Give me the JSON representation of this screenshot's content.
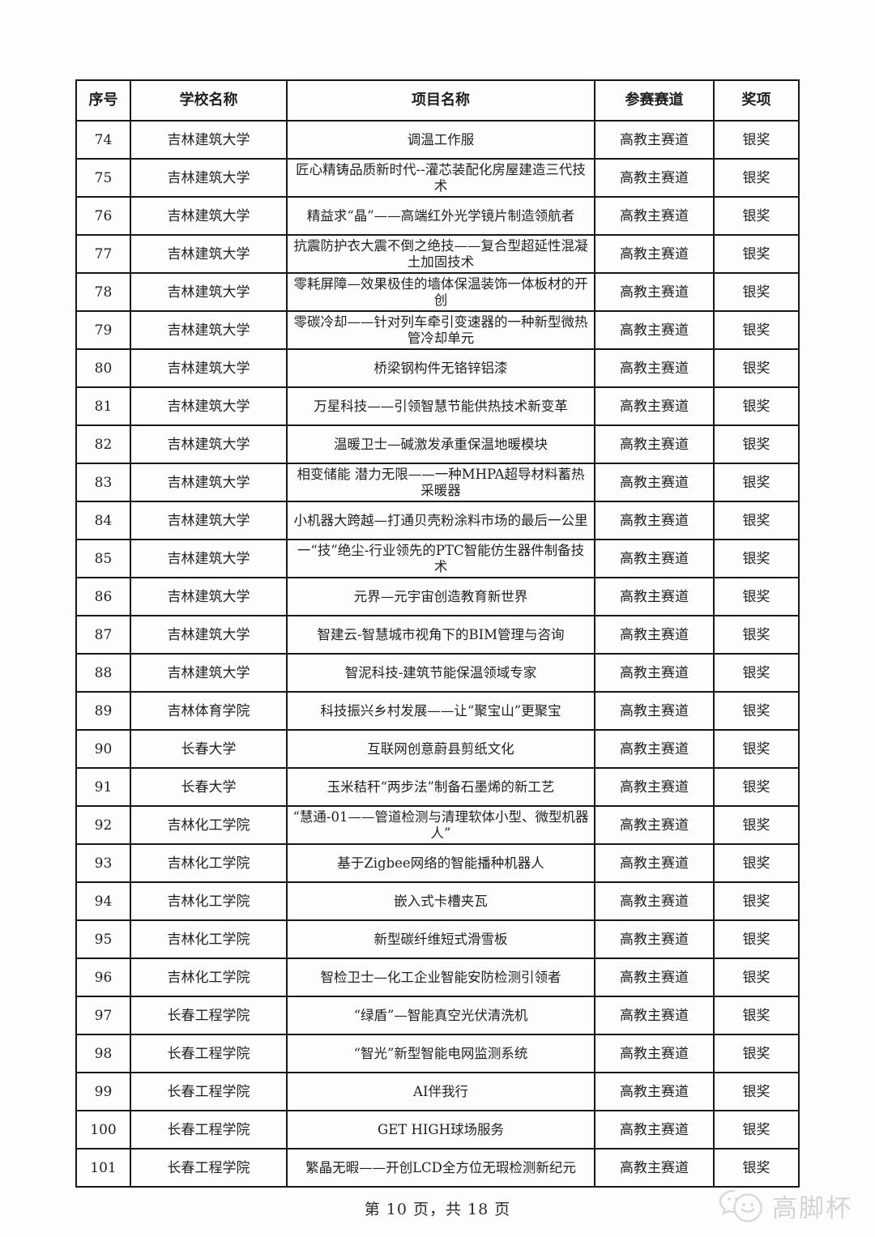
{
  "table": {
    "headers": [
      "序号",
      "学校名称",
      "项目名称",
      "参赛赛道",
      "奖项"
    ],
    "rows": [
      {
        "no": "74",
        "school": "吉林建筑大学",
        "project": "调温工作服",
        "track": "高教主赛道",
        "award": "银奖"
      },
      {
        "no": "75",
        "school": "吉林建筑大学",
        "project": "匠心精铸品质新时代--灌芯装配化房屋建造三代技术",
        "track": "高教主赛道",
        "award": "银奖"
      },
      {
        "no": "76",
        "school": "吉林建筑大学",
        "project": "精益求“晶”——高端红外光学镜片制造领航者",
        "track": "高教主赛道",
        "award": "银奖"
      },
      {
        "no": "77",
        "school": "吉林建筑大学",
        "project": "抗震防护衣大震不倒之绝技——复合型超延性混凝土加固技术",
        "track": "高教主赛道",
        "award": "银奖"
      },
      {
        "no": "78",
        "school": "吉林建筑大学",
        "project": "零耗屏障—效果极佳的墙体保温装饰一体板材的开创",
        "track": "高教主赛道",
        "award": "银奖"
      },
      {
        "no": "79",
        "school": "吉林建筑大学",
        "project": "零碳冷却——针对列车牵引变速器的一种新型微热管冷却单元",
        "track": "高教主赛道",
        "award": "银奖"
      },
      {
        "no": "80",
        "school": "吉林建筑大学",
        "project": "桥梁钢构件无铬锌铝漆",
        "track": "高教主赛道",
        "award": "银奖"
      },
      {
        "no": "81",
        "school": "吉林建筑大学",
        "project": "万星科技——引领智慧节能供热技术新变革",
        "track": "高教主赛道",
        "award": "银奖"
      },
      {
        "no": "82",
        "school": "吉林建筑大学",
        "project": "温暖卫士—碱激发承重保温地暖模块",
        "track": "高教主赛道",
        "award": "银奖"
      },
      {
        "no": "83",
        "school": "吉林建筑大学",
        "project": "相变储能 潜力无限——一种MHPA超导材料蓄热采暖器",
        "track": "高教主赛道",
        "award": "银奖"
      },
      {
        "no": "84",
        "school": "吉林建筑大学",
        "project": "小机器大跨越—打通贝壳粉涂料市场的最后一公里",
        "track": "高教主赛道",
        "award": "银奖"
      },
      {
        "no": "85",
        "school": "吉林建筑大学",
        "project": "一“技”绝尘-行业领先的PTC智能仿生器件制备技术",
        "track": "高教主赛道",
        "award": "银奖"
      },
      {
        "no": "86",
        "school": "吉林建筑大学",
        "project": "元界—元宇宙创造教育新世界",
        "track": "高教主赛道",
        "award": "银奖"
      },
      {
        "no": "87",
        "school": "吉林建筑大学",
        "project": "智建云-智慧城市视角下的BIM管理与咨询",
        "track": "高教主赛道",
        "award": "银奖"
      },
      {
        "no": "88",
        "school": "吉林建筑大学",
        "project": "智泥科技-建筑节能保温领域专家",
        "track": "高教主赛道",
        "award": "银奖"
      },
      {
        "no": "89",
        "school": "吉林体育学院",
        "project": "科技振兴乡村发展——让“聚宝山”更聚宝",
        "track": "高教主赛道",
        "award": "银奖"
      },
      {
        "no": "90",
        "school": "长春大学",
        "project": "互联网创意蔚县剪纸文化",
        "track": "高教主赛道",
        "award": "银奖"
      },
      {
        "no": "91",
        "school": "长春大学",
        "project": "玉米秸秆“两步法”制备石墨烯的新工艺",
        "track": "高教主赛道",
        "award": "银奖"
      },
      {
        "no": "92",
        "school": "吉林化工学院",
        "project": "“慧通-01——管道检测与清理软体小型、微型机器人”",
        "track": "高教主赛道",
        "award": "银奖"
      },
      {
        "no": "93",
        "school": "吉林化工学院",
        "project": "基于Zigbee网络的智能播种机器人",
        "track": "高教主赛道",
        "award": "银奖"
      },
      {
        "no": "94",
        "school": "吉林化工学院",
        "project": "嵌入式卡槽夹瓦",
        "track": "高教主赛道",
        "award": "银奖"
      },
      {
        "no": "95",
        "school": "吉林化工学院",
        "project": "新型碳纤维短式滑雪板",
        "track": "高教主赛道",
        "award": "银奖"
      },
      {
        "no": "96",
        "school": "吉林化工学院",
        "project": "智检卫士—化工企业智能安防检测引领者",
        "track": "高教主赛道",
        "award": "银奖"
      },
      {
        "no": "97",
        "school": "长春工程学院",
        "project": "“绿盾”—智能真空光伏清洗机",
        "track": "高教主赛道",
        "award": "银奖"
      },
      {
        "no": "98",
        "school": "长春工程学院",
        "project": "“智光”新型智能电网监测系统",
        "track": "高教主赛道",
        "award": "银奖"
      },
      {
        "no": "99",
        "school": "长春工程学院",
        "project": "AI伴我行",
        "track": "高教主赛道",
        "award": "银奖"
      },
      {
        "no": "100",
        "school": "长春工程学院",
        "project": "GET HIGH球场服务",
        "track": "高教主赛道",
        "award": "银奖"
      },
      {
        "no": "101",
        "school": "长春工程学院",
        "project": "繁晶无暇——开创LCD全方位无瑕检测新纪元",
        "track": "高教主赛道",
        "award": "银奖"
      }
    ]
  },
  "footer": {
    "page_info": "第 10 页，共 18 页"
  },
  "watermark": {
    "icon": "chat-bubbles-icon",
    "label": "高脚杯"
  }
}
